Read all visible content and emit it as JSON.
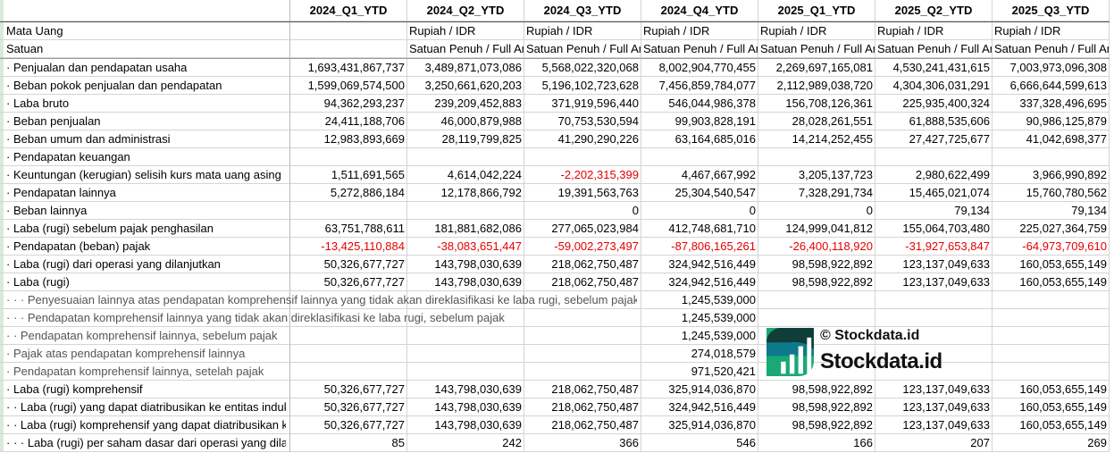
{
  "columns": [
    "2024_Q1_YTD",
    "2024_Q2_YTD",
    "2024_Q3_YTD",
    "2024_Q4_YTD",
    "2025_Q1_YTD",
    "2025_Q2_YTD",
    "2025_Q3_YTD"
  ],
  "meta_rows": [
    {
      "label": "Mata Uang",
      "values": [
        "",
        "Rupiah / IDR",
        "Rupiah / IDR",
        "Rupiah / IDR",
        "Rupiah / IDR",
        "Rupiah / IDR",
        "Rupiah / IDR"
      ]
    },
    {
      "label": "Satuan",
      "values": [
        "",
        "Satuan Penuh / Full Amount",
        "Satuan Penuh / Full Amount",
        "Satuan Penuh / Full Amount",
        "Satuan Penuh / Full Amount",
        "Satuan Penuh / Full Amount",
        "Satuan Penuh / Full Amount"
      ]
    }
  ],
  "rows": [
    {
      "label": "· Penjualan dan pendapatan usaha",
      "values": [
        "1,693,431,867,737",
        "3,489,871,073,086",
        "5,568,022,320,068",
        "8,002,904,770,455",
        "2,269,697,165,081",
        "4,530,241,431,615",
        "7,003,973,096,308"
      ]
    },
    {
      "label": "· Beban pokok penjualan dan pendapatan",
      "values": [
        "1,599,069,574,500",
        "3,250,661,620,203",
        "5,196,102,723,628",
        "7,456,859,784,077",
        "2,112,989,038,720",
        "4,304,306,031,291",
        "6,666,644,599,613"
      ]
    },
    {
      "label": "· Laba bruto",
      "values": [
        "94,362,293,237",
        "239,209,452,883",
        "371,919,596,440",
        "546,044,986,378",
        "156,708,126,361",
        "225,935,400,324",
        "337,328,496,695"
      ]
    },
    {
      "label": "· Beban penjualan",
      "values": [
        "24,411,188,706",
        "46,000,879,988",
        "70,753,530,594",
        "99,903,828,191",
        "28,028,261,551",
        "61,888,535,606",
        "90,986,125,879"
      ]
    },
    {
      "label": "· Beban umum dan administrasi",
      "values": [
        "12,983,893,669",
        "28,119,799,825",
        "41,290,290,226",
        "63,164,685,016",
        "14,214,252,455",
        "27,427,725,677",
        "41,042,698,377"
      ]
    },
    {
      "label": "· Pendapatan keuangan",
      "values": [
        "",
        "",
        "",
        "",
        "",
        "",
        ""
      ]
    },
    {
      "label": "· Keuntungan (kerugian) selisih kurs mata uang asing",
      "values": [
        "1,511,691,565",
        "4,614,042,224",
        "-2,202,315,399",
        "4,467,667,992",
        "3,205,137,723",
        "2,980,622,499",
        "3,966,990,892"
      ]
    },
    {
      "label": "· Pendapatan lainnya",
      "values": [
        "5,272,886,184",
        "12,178,866,792",
        "19,391,563,763",
        "25,304,540,547",
        "7,328,291,734",
        "15,465,021,074",
        "15,760,780,562"
      ]
    },
    {
      "label": "· Beban lainnya",
      "values": [
        "",
        "",
        "0",
        "0",
        "0",
        "79,134",
        "79,134"
      ]
    },
    {
      "label": "· Laba (rugi) sebelum pajak penghasilan",
      "values": [
        "63,751,788,611",
        "181,881,682,086",
        "277,065,023,984",
        "412,748,681,710",
        "124,999,041,812",
        "155,064,703,480",
        "225,027,364,759"
      ]
    },
    {
      "label": "· Pendapatan (beban) pajak",
      "values": [
        "-13,425,110,884",
        "-38,083,651,447",
        "-59,002,273,497",
        "-87,806,165,261",
        "-26,400,118,920",
        "-31,927,653,847",
        "-64,973,709,610"
      ]
    },
    {
      "label": "· Laba (rugi) dari operasi yang dilanjutkan",
      "values": [
        "50,326,677,727",
        "143,798,030,639",
        "218,062,750,487",
        "324,942,516,449",
        "98,598,922,892",
        "123,137,049,633",
        "160,053,655,149"
      ]
    },
    {
      "label": "· Laba (rugi)",
      "values": [
        "50,326,677,727",
        "143,798,030,639",
        "218,062,750,487",
        "324,942,516,449",
        "98,598,922,892",
        "123,137,049,633",
        "160,053,655,149"
      ]
    },
    {
      "label": "· · · Penyesuaian lainnya atas pendapatan komprehensif lainnya yang tidak akan direklasifikasi ke laba rugi, sebelum pajak",
      "values": [
        "",
        "",
        "",
        "1,245,539,000",
        "",
        "",
        ""
      ]
    },
    {
      "label": "· · · Pendapatan komprehensif lainnya yang tidak akan direklasifikasi ke laba rugi, sebelum pajak",
      "values": [
        "",
        "",
        "",
        "1,245,539,000",
        "",
        "",
        ""
      ]
    },
    {
      "label": "· · Pendapatan komprehensif lainnya, sebelum pajak",
      "values": [
        "",
        "",
        "",
        "1,245,539,000",
        "",
        "",
        ""
      ]
    },
    {
      "label": "· Pajak atas pendapatan komprehensif lainnya",
      "values": [
        "",
        "",
        "",
        "274,018,579",
        "",
        "",
        ""
      ]
    },
    {
      "label": "· Pendapatan komprehensif lainnya, setelah pajak",
      "values": [
        "",
        "",
        "",
        "971,520,421",
        "",
        "",
        ""
      ]
    },
    {
      "label": "· Laba (rugi) komprehensif",
      "values": [
        "50,326,677,727",
        "143,798,030,639",
        "218,062,750,487",
        "325,914,036,870",
        "98,598,922,892",
        "123,137,049,633",
        "160,053,655,149"
      ]
    },
    {
      "label": "· · Laba (rugi) yang dapat diatribusikan ke entitas induk",
      "values": [
        "50,326,677,727",
        "143,798,030,639",
        "218,062,750,487",
        "324,942,516,449",
        "98,598,922,892",
        "123,137,049,633",
        "160,053,655,149"
      ]
    },
    {
      "label": "· · Laba (rugi) komprehensif yang dapat diatribusikan ke entitas induk",
      "values": [
        "50,326,677,727",
        "143,798,030,639",
        "218,062,750,487",
        "325,914,036,870",
        "98,598,922,892",
        "123,137,049,633",
        "160,053,655,149"
      ]
    },
    {
      "label": "· · · Laba (rugi) per saham dasar dari operasi yang dilanjutkan",
      "values": [
        "85",
        "242",
        "366",
        "546",
        "166",
        "207",
        "269"
      ]
    }
  ],
  "watermark": {
    "small": "© Stockdata.id",
    "big": "Stockdata.id"
  },
  "colors": {
    "negative": "#e60000",
    "logo_dark": "#0f3d3a",
    "logo_mid": "#0d7a8c",
    "logo_light": "#1aa874"
  }
}
